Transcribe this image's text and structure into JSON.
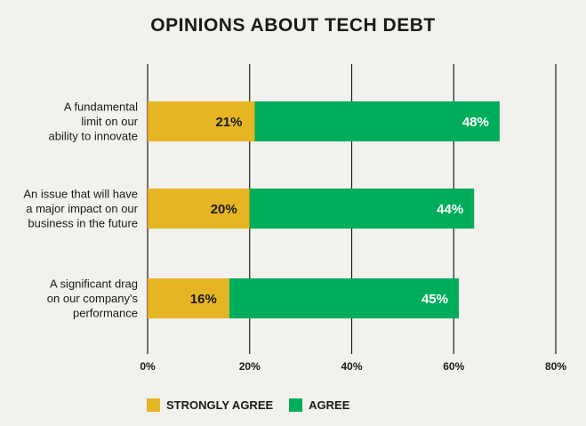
{
  "colors": {
    "strongly_agree": "#e5b523",
    "agree": "#00ad5b",
    "grid": "#1a1a1a"
  },
  "chart_data": {
    "type": "bar",
    "orientation": "horizontal",
    "stacked": true,
    "title": "OPINIONS ABOUT TECH DEBT",
    "categories": [
      [
        "A fundamental",
        "limit on our",
        "ability to innovate"
      ],
      [
        "An issue that will have",
        "a major impact on our",
        "business in the future"
      ],
      [
        "A significant drag",
        "on our company's",
        "performance"
      ]
    ],
    "series": [
      {
        "name": "STRONGLY AGREE",
        "values": [
          21,
          20,
          16
        ],
        "labels": [
          "21%",
          "20%",
          "16%"
        ]
      },
      {
        "name": "AGREE",
        "values": [
          48,
          44,
          45
        ],
        "labels": [
          "48%",
          "44%",
          "45%"
        ]
      }
    ],
    "xlim": [
      0,
      80
    ],
    "xticks": [
      0,
      20,
      40,
      60,
      80
    ],
    "xtick_labels": [
      "0%",
      "20%",
      "40%",
      "60%",
      "80%"
    ],
    "grid": true,
    "legend_position": "bottom-left"
  }
}
